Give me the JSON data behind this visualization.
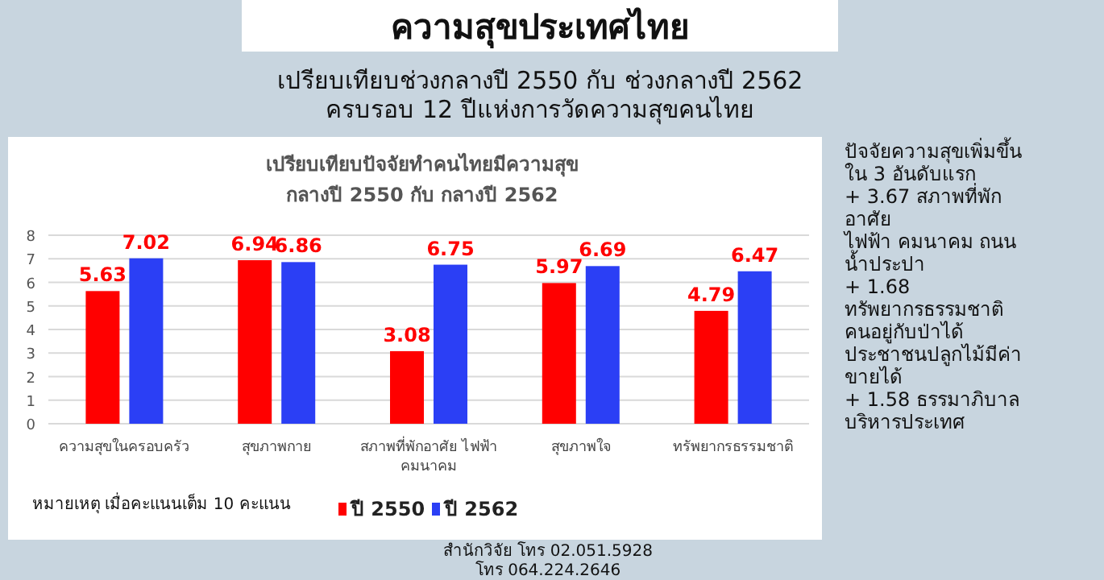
{
  "chart_data": {
    "type": "bar",
    "title": "ความสุขประเทศไทย",
    "subtitle": "เปรียบเทียบช่วงกลางปี 2550 กับ ช่วงกลางปี 2562\nครบรอบ 12 ปีแห่งการวัดความสุขคนไทย",
    "annotations": [
      "เปรียบเทียบปัจจัยทำคนไทยมีความสุข\nกลางปี 2550 กับ กลางปี 2562",
      "หมายเหตุ เมื่อคะแนนเต็ม 10 คะแนน",
      "ปัจจัยความสุขเพิ่มขึ้น\nใน 3 อันดับแรก\n\n+ 3.67 สภาพที่พัก\nอาศัย\nไฟฟ้า คมนาคม ถนน\nน้ำประปา\n\n+ 1.68\nทรัพยากรธรรมชาติ\nคนอยู่กับป่าได้\nประชาชนปลูกไม้มีค่า\nขายได้\n\n+ 1.58 ธรรมาภิบาล\nบริหารประเทศ",
      "สำนักวิจัย โทร 02.051.5928\nโทร 064.224.2646"
    ],
    "categories": [
      "ความสุขในครอบครัว",
      "สุขภาพกาย",
      "สภาพที่พักอาศัย ไฟฟ้า\nคมนาคม",
      "สุขภาพใจ",
      "ทรัพยากรธรรมชาติ"
    ],
    "series": [
      {
        "name": "ปี 2550",
        "color": "#ff0000",
        "values": [
          5.63,
          6.94,
          3.08,
          5.97,
          4.79
        ]
      },
      {
        "name": "ปี 2562",
        "color": "#2b3ff5",
        "values": [
          7.02,
          6.86,
          6.75,
          6.69,
          6.47
        ]
      }
    ],
    "ylim": [
      0,
      8
    ],
    "yticks": [
      0,
      1,
      2,
      3,
      4,
      5,
      6,
      7,
      8
    ],
    "grid": "y",
    "legend": "bottom",
    "data_labels": true
  }
}
